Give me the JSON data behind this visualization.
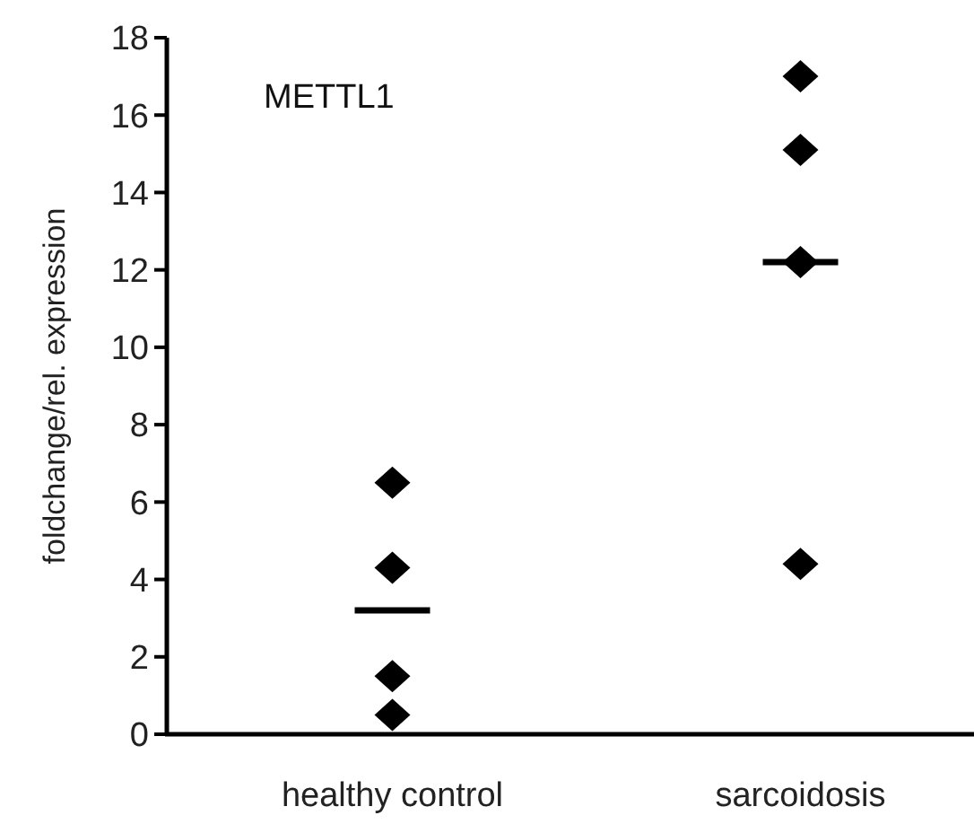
{
  "chart_data": {
    "type": "scatter",
    "title": "METTL1",
    "ylabel": "foldchange/rel. expression",
    "categories": [
      "healthy control",
      "sarcoidosis"
    ],
    "series": [
      {
        "marker": "diamond",
        "color": "#000000",
        "x": [
          "healthy control",
          "healthy control",
          "healthy control",
          "healthy control",
          "sarcoidosis",
          "sarcoidosis",
          "sarcoidosis",
          "sarcoidosis"
        ],
        "values": [
          6.5,
          4.3,
          1.5,
          0.5,
          17,
          15.1,
          12.2,
          4.4
        ]
      },
      {
        "type": "box",
        "color": "#000000",
        "boxes": [
          {
            "low": 3.2,
            "q1": 3.2,
            "median": 3.2,
            "q3": 3.2,
            "high": 3.2
          },
          {
            "low": 12.2,
            "q1": 12.2,
            "median": 12.2,
            "q3": 12.2,
            "high": 12.2
          }
        ]
      }
    ],
    "ylim": [
      0,
      18
    ],
    "yticks": [
      0,
      2,
      4,
      6,
      8,
      10,
      12,
      14,
      16,
      18
    ],
    "grid": false
  }
}
